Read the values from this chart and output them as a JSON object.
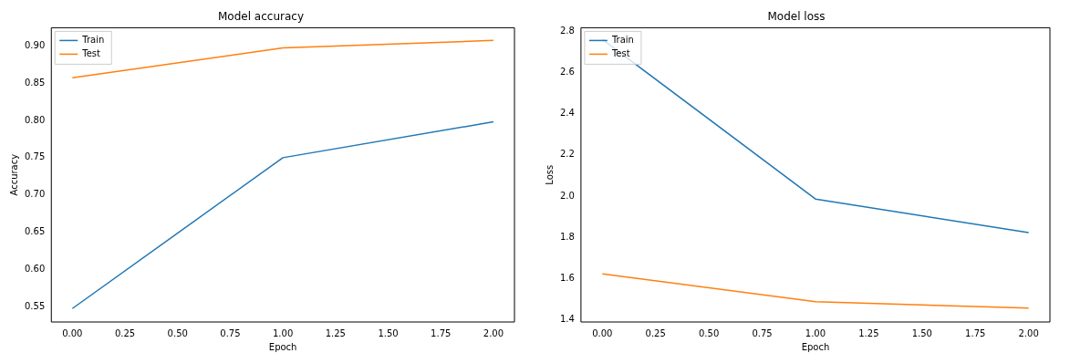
{
  "chart_data": [
    {
      "type": "line",
      "title": "Model accuracy",
      "xlabel": "Epoch",
      "ylabel": "Accuracy",
      "x": [
        0,
        1,
        2
      ],
      "series": [
        {
          "name": "Train",
          "color": "#1f77b4",
          "values": [
            0.548,
            0.75,
            0.798
          ]
        },
        {
          "name": "Test",
          "color": "#ff7f0e",
          "values": [
            0.857,
            0.897,
            0.907
          ]
        }
      ],
      "xlim": [
        -0.1,
        2.1
      ],
      "xticks": [
        {
          "value": 0,
          "label": "0.00"
        },
        {
          "value": 0.25,
          "label": "0.25"
        },
        {
          "value": 0.5,
          "label": "0.50"
        },
        {
          "value": 0.75,
          "label": "0.75"
        },
        {
          "value": 1,
          "label": "1.00"
        },
        {
          "value": 1.25,
          "label": "1.25"
        },
        {
          "value": 1.5,
          "label": "1.50"
        },
        {
          "value": 1.75,
          "label": "1.75"
        },
        {
          "value": 2,
          "label": "2.00"
        }
      ],
      "ylim": [
        0.53,
        0.924
      ],
      "yticks": [
        {
          "value": 0.55,
          "label": "0.55"
        },
        {
          "value": 0.6,
          "label": "0.60"
        },
        {
          "value": 0.65,
          "label": "0.65"
        },
        {
          "value": 0.7,
          "label": "0.70"
        },
        {
          "value": 0.75,
          "label": "0.75"
        },
        {
          "value": 0.8,
          "label": "0.80"
        },
        {
          "value": 0.85,
          "label": "0.85"
        },
        {
          "value": 0.9,
          "label": "0.90"
        }
      ],
      "legend": "top left",
      "grid": false
    },
    {
      "type": "line",
      "title": "Model loss",
      "xlabel": "Epoch",
      "ylabel": "Loss",
      "x": [
        0,
        1,
        2
      ],
      "series": [
        {
          "name": "Train",
          "color": "#1f77b4",
          "values": [
            2.76,
            1.986,
            1.823
          ]
        },
        {
          "name": "Test",
          "color": "#ff7f0e",
          "values": [
            1.623,
            1.488,
            1.457
          ]
        }
      ],
      "xlim": [
        -0.1,
        2.1
      ],
      "xticks": [
        {
          "value": 0,
          "label": "0.00"
        },
        {
          "value": 0.25,
          "label": "0.25"
        },
        {
          "value": 0.5,
          "label": "0.50"
        },
        {
          "value": 0.75,
          "label": "0.75"
        },
        {
          "value": 1,
          "label": "1.00"
        },
        {
          "value": 1.25,
          "label": "1.25"
        },
        {
          "value": 1.5,
          "label": "1.50"
        },
        {
          "value": 1.75,
          "label": "1.75"
        },
        {
          "value": 2,
          "label": "2.00"
        }
      ],
      "ylim": [
        1.39,
        2.816
      ],
      "yticks": [
        {
          "value": 1.4,
          "label": "1.4"
        },
        {
          "value": 1.6,
          "label": "1.6"
        },
        {
          "value": 1.8,
          "label": "1.8"
        },
        {
          "value": 2.0,
          "label": "2.0"
        },
        {
          "value": 2.2,
          "label": "2.2"
        },
        {
          "value": 2.4,
          "label": "2.4"
        },
        {
          "value": 2.6,
          "label": "2.6"
        },
        {
          "value": 2.8,
          "label": "2.8"
        }
      ],
      "legend": "top left",
      "grid": false
    }
  ]
}
